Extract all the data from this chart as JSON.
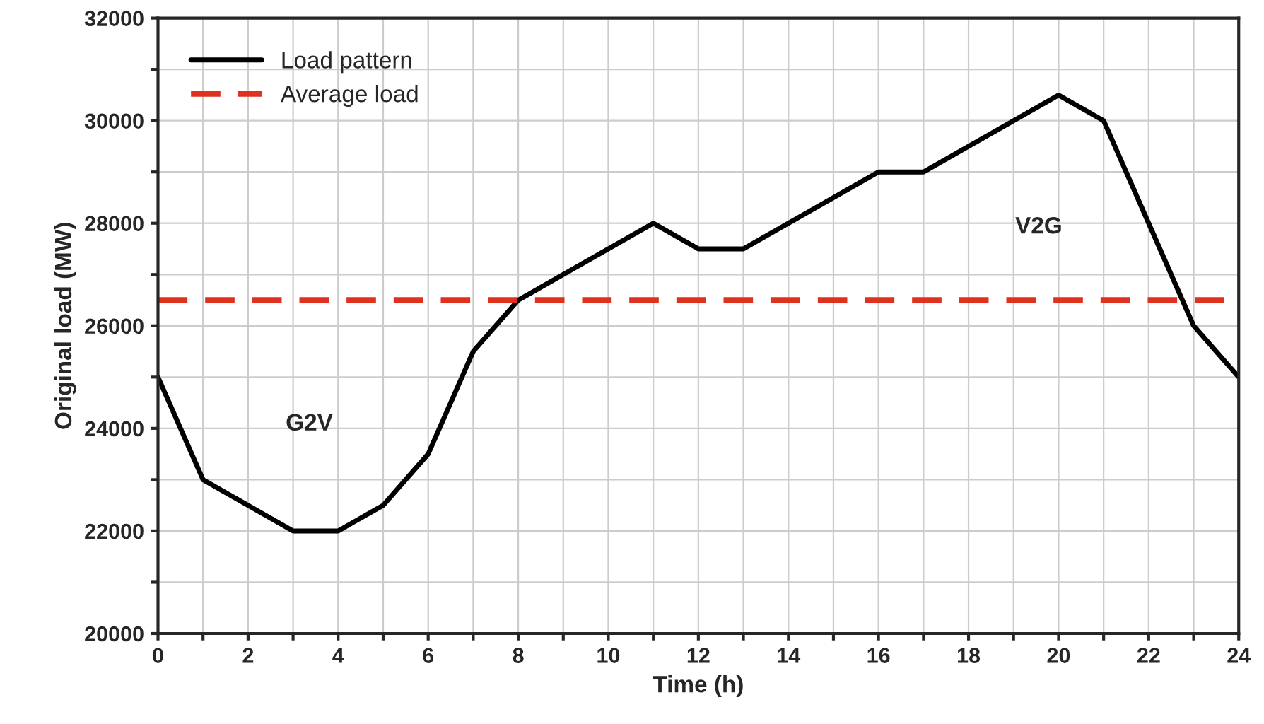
{
  "chart_data": {
    "type": "line",
    "xlabel": "Time (h)",
    "ylabel": "Original load (MW)",
    "x": [
      0,
      1,
      2,
      3,
      4,
      5,
      6,
      7,
      8,
      9,
      10,
      11,
      12,
      13,
      14,
      15,
      16,
      17,
      18,
      19,
      20,
      21,
      22,
      23,
      24
    ],
    "series": [
      {
        "name": "Load pattern",
        "color": "#000000",
        "values": [
          25000,
          23000,
          22500,
          22000,
          22000,
          22500,
          23500,
          25500,
          26500,
          27000,
          27500,
          28000,
          27500,
          27500,
          28000,
          28500,
          29000,
          29000,
          29500,
          30000,
          30500,
          30000,
          28000,
          26000,
          25000
        ]
      }
    ],
    "ref_lines": [
      {
        "axis": "y",
        "value": 26500,
        "label": "Average load",
        "color": "#e0301e",
        "line_style": "dashed"
      }
    ],
    "annotations": [
      "G2V",
      "V2G"
    ],
    "xlim": [
      0,
      24
    ],
    "ylim": [
      20000,
      32000
    ],
    "xticks": [
      0,
      {
        "value": 1,
        "label": null
      },
      2,
      {
        "value": 3,
        "label": null
      },
      4,
      {
        "value": 5,
        "label": null
      },
      6,
      {
        "value": 7,
        "label": null
      },
      8,
      {
        "value": 9,
        "label": null
      },
      10,
      {
        "value": 11,
        "label": null
      },
      12,
      {
        "value": 13,
        "label": null
      },
      14,
      {
        "value": 15,
        "label": null
      },
      16,
      {
        "value": 17,
        "label": null
      },
      18,
      {
        "value": 19,
        "label": null
      },
      20,
      {
        "value": 21,
        "label": null
      },
      22,
      {
        "value": 23,
        "label": null
      },
      24
    ],
    "yticks": [
      20000,
      {
        "value": 21000,
        "label": null
      },
      22000,
      {
        "value": 23000,
        "label": null
      },
      24000,
      {
        "value": 25000,
        "label": null
      },
      26000,
      {
        "value": 27000,
        "label": null
      },
      28000,
      {
        "value": 29000,
        "label": null
      },
      30000,
      {
        "value": 31000,
        "label": null
      },
      32000
    ],
    "grid": true,
    "legend": "top left",
    "line_style": "solid",
    "marker": "none"
  }
}
